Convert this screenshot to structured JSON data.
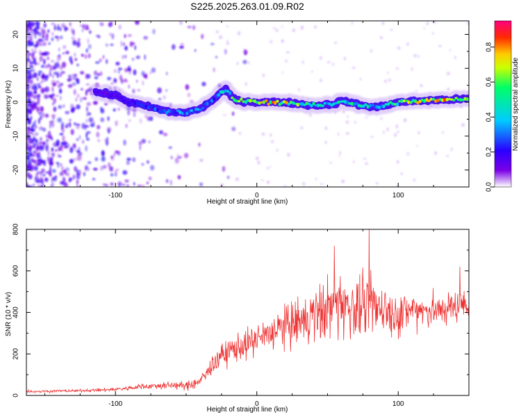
{
  "figure_title": "S225.2025.263.01.09.R02",
  "chart_data": [
    {
      "type": "heatmap",
      "title": "S225.2025.263.01.09.R02",
      "xlabel": "Height of straight line (km)",
      "ylabel": "Frequency (Hz)",
      "xlim": [
        -163,
        150
      ],
      "ylim": [
        -25,
        24
      ],
      "xticks": [
        "-100",
        "0",
        "100"
      ],
      "xtick_values": [
        -100,
        0,
        100
      ],
      "yticks": [
        "20",
        "10",
        "0",
        "-10",
        "-20"
      ],
      "ytick_values": [
        20,
        10,
        0,
        -10,
        -20
      ],
      "colorbar": {
        "label": "Normalized spectral amplitude",
        "range": [
          0,
          0.95
        ],
        "ticks": [
          "0.0",
          "0.2",
          "0.4",
          "0.6",
          "0.8"
        ],
        "tick_values": [
          0,
          0.2,
          0.4,
          0.6,
          0.8
        ],
        "colors": [
          "#ffffff",
          "#7a00e6",
          "#2a00ff",
          "#00ccff",
          "#00ff66",
          "#ccff00",
          "#ffcc00",
          "#ff2a00",
          "#ff0080"
        ]
      },
      "ridge": {
        "x": [
          -115,
          -100,
          -90,
          -80,
          -70,
          -60,
          -50,
          -40,
          -30,
          -25,
          -22,
          -15,
          0,
          20,
          40,
          55,
          60,
          75,
          85,
          100,
          120,
          150
        ],
        "frequency": [
          3,
          2,
          0,
          -1,
          -2,
          -3,
          -3,
          -2,
          1,
          3,
          3.5,
          0.5,
          0,
          0,
          -1,
          -0.5,
          0.5,
          -1,
          -1.5,
          0,
          0.5,
          1
        ],
        "amplitude": [
          0.2,
          0.18,
          0.25,
          0.3,
          0.35,
          0.4,
          0.45,
          0.45,
          0.35,
          0.5,
          0.5,
          0.75,
          0.85,
          0.85,
          0.55,
          0.5,
          0.6,
          0.6,
          0.5,
          0.7,
          0.85,
          0.9
        ]
      }
    },
    {
      "type": "line",
      "xlabel": "Height of straight line (km)",
      "ylabel": "SNR (10 * v/v)",
      "xlim": [
        -163,
        150
      ],
      "ylim": [
        0,
        800
      ],
      "xticks": [
        "-100",
        "0",
        "100"
      ],
      "xtick_values": [
        -100,
        0,
        100
      ],
      "yticks": [
        "0",
        "200",
        "400",
        "600",
        "800"
      ],
      "ytick_values": [
        0,
        200,
        400,
        600,
        800
      ],
      "series": [
        {
          "name": "SNR",
          "color": "#ee3333",
          "x": [
            -163,
            -150,
            -140,
            -130,
            -120,
            -110,
            -100,
            -90,
            -80,
            -70,
            -60,
            -50,
            -45,
            -40,
            -35,
            -30,
            -25,
            -20,
            -15,
            -10,
            -5,
            0,
            5,
            10,
            15,
            20,
            25,
            30,
            35,
            40,
            45,
            50,
            55,
            60,
            65,
            70,
            75,
            80,
            85,
            90,
            95,
            100,
            105,
            110,
            115,
            120,
            125,
            130,
            135,
            140,
            145,
            150
          ],
          "mean": [
            20,
            20,
            22,
            22,
            24,
            26,
            30,
            35,
            45,
            45,
            50,
            45,
            55,
            70,
            110,
            160,
            190,
            210,
            230,
            240,
            250,
            270,
            280,
            300,
            320,
            330,
            340,
            350,
            360,
            380,
            400,
            420,
            430,
            440,
            430,
            420,
            410,
            420,
            430,
            420,
            400,
            390,
            400,
            410,
            420,
            410,
            405,
            410,
            420,
            430,
            440,
            450
          ],
          "spread": [
            10,
            10,
            10,
            10,
            10,
            12,
            14,
            16,
            20,
            25,
            25,
            30,
            35,
            40,
            60,
            70,
            80,
            90,
            100,
            100,
            110,
            110,
            120,
            130,
            140,
            150,
            160,
            170,
            180,
            190,
            200,
            210,
            220,
            220,
            220,
            210,
            200,
            200,
            190,
            180,
            160,
            150,
            140,
            130,
            130,
            120,
            120,
            110,
            110,
            110,
            110,
            110
          ]
        }
      ]
    }
  ]
}
